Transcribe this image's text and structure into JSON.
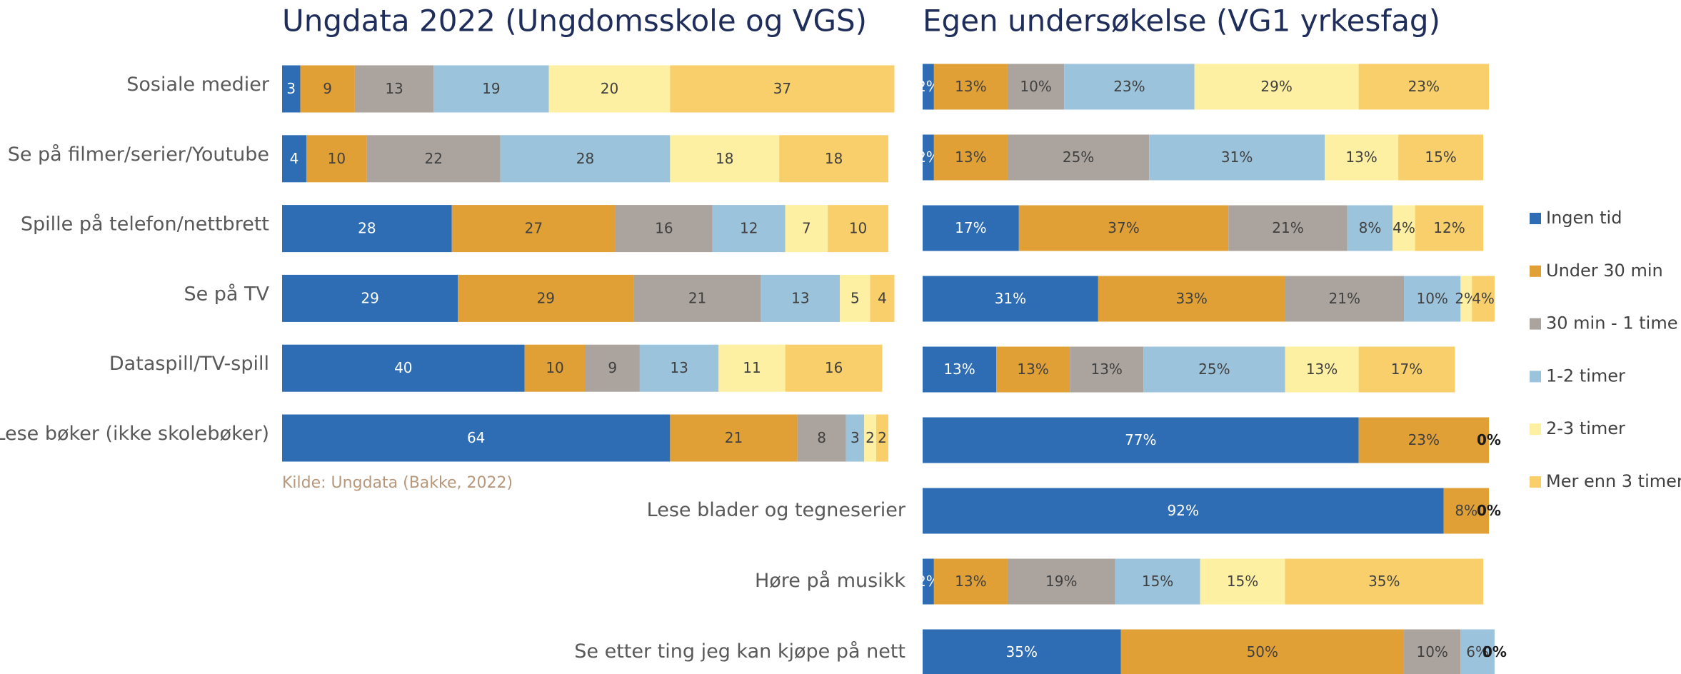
{
  "chart_data": [
    {
      "type": "stacked_barh",
      "title": "Ungdata 2022 (Ungdomsskole og VGS)",
      "note": "Kilde: Ungdata (Bakke,  2022)",
      "categories": [
        "Sosiale medier",
        "Se på filmer/serier/Youtube",
        "Spille på telefon/nettbrett",
        "Se på TV",
        "Dataspill/TV-spill",
        "Lese bøker (ikke skolebøker)"
      ],
      "xlim": [
        0,
        100
      ],
      "series": [
        {
          "color": "#2e6db4",
          "values": [
            3,
            4,
            28,
            29,
            40,
            64
          ]
        },
        {
          "color": "#e0a035",
          "values": [
            9,
            10,
            27,
            29,
            10,
            21
          ]
        },
        {
          "color": "#aba49e",
          "values": [
            13,
            22,
            16,
            21,
            9,
            8
          ]
        },
        {
          "color": "#9cc3dc",
          "values": [
            19,
            28,
            12,
            13,
            13,
            3
          ]
        },
        {
          "color": "#fdf0a3",
          "values": [
            20,
            18,
            7,
            5,
            11,
            2
          ]
        },
        {
          "color": "#f8cf6a",
          "values": [
            37,
            18,
            10,
            4,
            16,
            2
          ]
        }
      ]
    },
    {
      "type": "stacked_barh",
      "title": "Egen undersøkelse (VG1 yrkesfag)",
      "categories": [
        null,
        null,
        null,
        null,
        null,
        null,
        "Lese blader og tegneserier",
        "Høre på musikk",
        "Se etter ting jeg kan kjøpe på nett"
      ],
      "xlim": [
        0,
        100
      ],
      "legend": "right",
      "series": [
        {
          "name": "Ingen tid",
          "color": "#2e6db4",
          "values": [
            2,
            2,
            17,
            31,
            13,
            77,
            92,
            2,
            35
          ],
          "value_labels": [
            "2%",
            "2%",
            "17%",
            "31%",
            "13%",
            "77%",
            "92%",
            "2%",
            "35%"
          ]
        },
        {
          "name": "Under 30 min",
          "color": "#e0a035",
          "values": [
            13,
            13,
            37,
            33,
            13,
            23,
            8,
            13,
            50
          ],
          "value_labels": [
            "13%",
            "13%",
            "37%",
            "33%",
            "13%",
            "23%",
            "8%",
            "13%",
            "50%"
          ]
        },
        {
          "name": "30 min - 1 time",
          "color": "#aba49e",
          "values": [
            10,
            25,
            21,
            21,
            13,
            0,
            0,
            19,
            10
          ],
          "value_labels": [
            "10%",
            "25%",
            "21%",
            "21%",
            "13%",
            "0%",
            "0%",
            "19%",
            "10%"
          ]
        },
        {
          "name": "1-2 timer",
          "color": "#9cc3dc",
          "values": [
            23,
            31,
            8,
            10,
            25,
            null,
            null,
            15,
            6
          ],
          "value_labels": [
            "23%",
            "31%",
            "8%",
            "10%",
            "25%",
            null,
            null,
            "15%",
            "6%"
          ]
        },
        {
          "name": "2-3 timer",
          "color": "#fdf0a3",
          "values": [
            29,
            13,
            4,
            2,
            13,
            null,
            null,
            15,
            0
          ],
          "value_labels": [
            "29%",
            "13%",
            "4%",
            "2%",
            "13%",
            null,
            null,
            "15%",
            "0%"
          ]
        },
        {
          "name": "Mer enn 3 timer",
          "color": "#f8cf6a",
          "values": [
            23,
            15,
            12,
            4,
            17,
            null,
            null,
            35,
            null
          ],
          "value_labels": [
            "23%",
            "15%",
            "12%",
            "4%",
            "17%",
            null,
            null,
            "35%",
            null
          ]
        }
      ]
    }
  ]
}
